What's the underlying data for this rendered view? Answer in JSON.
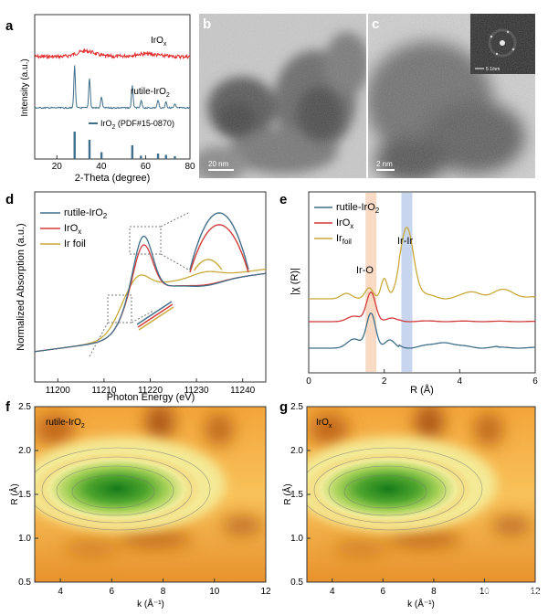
{
  "panels": {
    "a": {
      "label": "a",
      "ylabel": "Intensity (a.u.)",
      "xlabel": "2-Theta (degree)",
      "xticks": [
        "20",
        "40",
        "60",
        "80"
      ],
      "legend_irox": "IrO",
      "legend_irox_sub": "x",
      "legend_rutile": "rutile-IrO",
      "legend_rutile_sub": "2",
      "legend_pdf": "IrO",
      "legend_pdf_sub": "2",
      "legend_pdf_rest": " (PDF#15-0870)"
    },
    "b": {
      "label": "b",
      "scale": "20 nm"
    },
    "c": {
      "label": "c",
      "scale": "2 nm",
      "inset_scale": "5 1/nm"
    },
    "d": {
      "label": "d",
      "ylabel": "Normalized Absorption (a.u.)",
      "xlabel": "Photon Energy (eV)",
      "xticks": [
        "11200",
        "11210",
        "11220",
        "11230",
        "11240"
      ],
      "legend": [
        {
          "name": "rutile-IrO",
          "sub": "2",
          "color": "#3f6f8a"
        },
        {
          "name": "IrO",
          "sub": "x",
          "color": "#d23a3a"
        },
        {
          "name": "Ir foil",
          "sub": "",
          "color": "#c9a93a"
        }
      ]
    },
    "e": {
      "label": "e",
      "ylabel": "|χ (R)|",
      "xlabel": "R (Å)",
      "xticks": [
        "0",
        "2",
        "4",
        "6"
      ],
      "annotation_iro": "Ir-O",
      "annotation_irir": "Ir-Ir",
      "legend": [
        {
          "name": "rutile-IrO",
          "sub": "2",
          "color": "#3f6f8a"
        },
        {
          "name": "IrO",
          "sub": "x",
          "color": "#d23a3a"
        },
        {
          "name": "Ir",
          "sub": "foil",
          "color": "#c9a93a"
        }
      ]
    },
    "f": {
      "label": "f",
      "inner": "rutile-IrO",
      "inner_sub": "2",
      "ylabel": "R (Å)",
      "xlabel": "k (Å⁻¹)",
      "xticks": [
        "4",
        "6",
        "8",
        "10",
        "12"
      ],
      "yticks": [
        "0.5",
        "1.0",
        "1.5",
        "2.0",
        "2.5"
      ]
    },
    "g": {
      "label": "g",
      "inner": "IrO",
      "inner_sub": "x",
      "ylabel": "R (Å)",
      "xlabel": "k (Å⁻¹)",
      "xticks": [
        "4",
        "6",
        "8",
        "10",
        "12"
      ],
      "yticks": [
        "0.5",
        "1.0",
        "1.5",
        "2.0",
        "2.5"
      ]
    }
  },
  "watermark": "知乎 @测试云平台",
  "chart_data": [
    {
      "type": "line",
      "panel": "a",
      "title": "",
      "xlabel": "2-Theta (degree)",
      "ylabel": "Intensity (a.u.)",
      "xlim": [
        10,
        80
      ],
      "series": [
        {
          "name": "IrOx",
          "color": "#e02828"
        },
        {
          "name": "rutile-IrO2",
          "color": "#3f6f8a"
        },
        {
          "name": "IrO2 (PDF#15-0870)",
          "color": "#3f6f8a"
        }
      ],
      "ref_peaks": [
        {
          "x": 28.0,
          "h": 1.0
        },
        {
          "x": 34.7,
          "h": 0.7
        },
        {
          "x": 40.1,
          "h": 0.25
        },
        {
          "x": 54.0,
          "h": 0.5
        },
        {
          "x": 57.9,
          "h": 0.12
        },
        {
          "x": 65.6,
          "h": 0.2
        },
        {
          "x": 69.2,
          "h": 0.15
        },
        {
          "x": 73.2,
          "h": 0.1
        }
      ]
    },
    {
      "type": "line",
      "panel": "d",
      "xlabel": "Photon Energy (eV)",
      "ylabel": "Normalized Absorption (a.u.)",
      "xlim": [
        11195,
        11245
      ],
      "series": [
        {
          "name": "rutile-IrO2",
          "peak_x": 11218.5,
          "peak_y": 1.72
        },
        {
          "name": "IrOx",
          "peak_x": 11218.5,
          "peak_y": 1.62
        },
        {
          "name": "Ir foil",
          "peak_x": 11217.5,
          "peak_y": 1.25
        }
      ]
    },
    {
      "type": "line",
      "panel": "e",
      "xlabel": "R (Å)",
      "ylabel": "|χ (R)|",
      "xlim": [
        0,
        6
      ],
      "series": [
        {
          "name": "rutile-IrO2",
          "main_peak_x": 1.65
        },
        {
          "name": "IrOx",
          "main_peak_x": 1.65
        },
        {
          "name": "Ir foil",
          "main_peak_x": 2.6
        }
      ],
      "highlights": [
        {
          "x": 1.65,
          "label": "Ir-O"
        },
        {
          "x": 2.6,
          "label": "Ir-Ir"
        }
      ]
    },
    {
      "type": "heatmap",
      "panel": "f",
      "xlabel": "k (Å⁻¹)",
      "ylabel": "R (Å)",
      "xlim": [
        3,
        12
      ],
      "ylim": [
        0.5,
        2.5
      ],
      "max_k": 6.0,
      "max_R": 1.55
    },
    {
      "type": "heatmap",
      "panel": "g",
      "xlabel": "k (Å⁻¹)",
      "ylabel": "R (Å)",
      "xlim": [
        3,
        12
      ],
      "ylim": [
        0.5,
        2.5
      ],
      "max_k": 6.0,
      "max_R": 1.55
    }
  ]
}
